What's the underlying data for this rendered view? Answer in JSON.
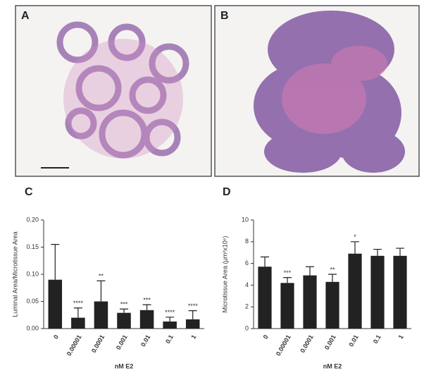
{
  "panels": [
    "A",
    "B"
  ],
  "chart_data": [
    {
      "type": "bar",
      "panel": "C",
      "xlabel": "nM E2",
      "ylabel": "Luminal Area/Microtissue Area",
      "categories": [
        "0",
        "0.00001",
        "0.0001",
        "0.001",
        "0.01",
        "0.1",
        "1"
      ],
      "values": [
        0.09,
        0.02,
        0.05,
        0.029,
        0.034,
        0.013,
        0.017
      ],
      "errors": [
        0.065,
        0.018,
        0.038,
        0.007,
        0.01,
        0.008,
        0.016
      ],
      "annotations": [
        null,
        "****",
        "**",
        "***",
        "***",
        "****",
        "****"
      ],
      "color": "#222222",
      "ylim": [
        0,
        0.2
      ],
      "yticks": [
        {
          "value": 0,
          "label": "0.00"
        },
        {
          "value": 0.05,
          "label": "0.05"
        },
        {
          "value": 0.1,
          "label": "0.10"
        },
        {
          "value": 0.15,
          "label": "0.15"
        },
        {
          "value": 0.2,
          "label": "0.20"
        }
      ]
    },
    {
      "type": "bar",
      "panel": "D",
      "xlabel": "nM E2",
      "ylabel": "Microtissue Area (μm²x10⁶)",
      "categories": [
        "0",
        "0.00001",
        "0.0001",
        "0.001",
        "0.01",
        "0.1",
        "1"
      ],
      "values": [
        5.7,
        4.2,
        4.9,
        4.3,
        6.9,
        6.7,
        6.7
      ],
      "errors": [
        0.9,
        0.5,
        0.8,
        0.7,
        1.1,
        0.6,
        0.7
      ],
      "annotations": [
        null,
        "***",
        null,
        "**",
        "*",
        null,
        null
      ],
      "color": "#222222",
      "ylim": [
        0,
        10
      ],
      "yticks": [
        0,
        2,
        4,
        6,
        8,
        10
      ]
    }
  ]
}
